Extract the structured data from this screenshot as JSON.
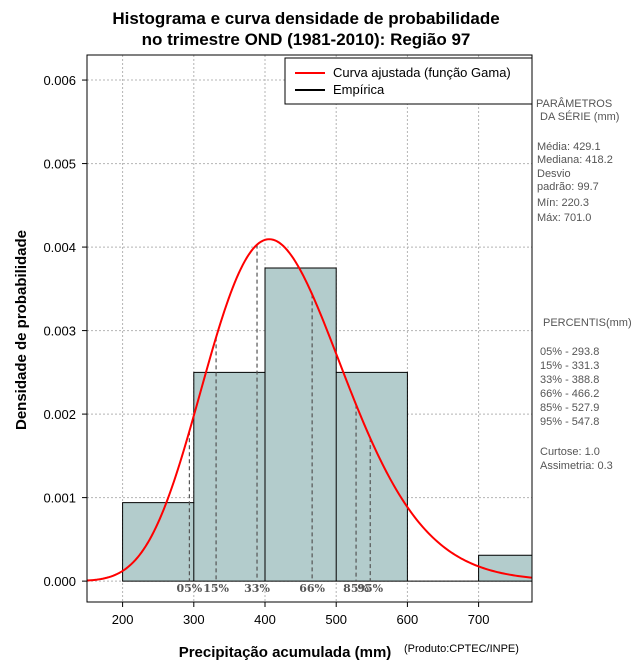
{
  "chart_data": {
    "type": "bar",
    "title_lines": [
      "Histograma e curva densidade de probabilidade",
      "no trimestre OND (1981-2010): Região 97"
    ],
    "xlabel": "Precipitação acumulada (mm)",
    "ylabel": "Densidade de probabilidade",
    "product_note": "(Produto:CPTEC/INPE)",
    "xlim": [
      150,
      775
    ],
    "ylim": [
      -0.00025,
      0.0063
    ],
    "x_ticks": [
      200,
      300,
      400,
      500,
      600,
      700
    ],
    "y_ticks": [
      0.0,
      0.001,
      0.002,
      0.003,
      0.004,
      0.005,
      0.006
    ],
    "y_tick_labels": [
      "0.000",
      "0.001",
      "0.002",
      "0.003",
      "0.004",
      "0.005",
      "0.006"
    ],
    "grid": true,
    "bins": [
      {
        "start": 200,
        "end": 300,
        "density": 0.00094
      },
      {
        "start": 300,
        "end": 400,
        "density": 0.0025
      },
      {
        "start": 400,
        "end": 500,
        "density": 0.00375
      },
      {
        "start": 500,
        "end": 600,
        "density": 0.0025
      },
      {
        "start": 600,
        "end": 700,
        "density": 0.0
      },
      {
        "start": 700,
        "end": 775,
        "density": 0.00031
      }
    ],
    "fitted_curve": {
      "distribution": "gamma",
      "mean": 429.1,
      "sd": 99.7
    },
    "percentiles": [
      {
        "label": "05%",
        "value": 293.8
      },
      {
        "label": "15%",
        "value": 331.3
      },
      {
        "label": "33%",
        "value": 388.8
      },
      {
        "label": "66%",
        "value": 466.2
      },
      {
        "label": "85%",
        "value": 527.9
      },
      {
        "label": "95%",
        "value": 547.8
      }
    ],
    "legend": {
      "position": "top-right",
      "entries": [
        {
          "label": "Curva ajustada (função Gama)",
          "color": "#ff0000"
        },
        {
          "label": "Empírica",
          "color": "#000000"
        }
      ]
    },
    "colors": {
      "bar_fill": "#b3cccc",
      "curve": "#ff0000",
      "grid": "#b4b4b4",
      "percentile_line": "#555555"
    }
  },
  "side_panel": {
    "params_title_1": "PARÂMETROS",
    "params_title_2": "DA SÉRIE (mm)",
    "media": "Média:  429.1",
    "mediana": "Mediana:  418.2",
    "desvio_1": "Desvio",
    "desvio_2": "padrão:  99.7",
    "min": "Mín:  220.3",
    "max": "Máx:  701.0",
    "percentis_title": "PERCENTIS(mm)",
    "percentis": [
      "05% -  293.8",
      "15% -  331.3",
      "33% -  388.8",
      "66% -  466.2",
      "85% -  527.9",
      "95% -  547.8"
    ],
    "curtose": "Curtose:  1.0",
    "assimetria": "Assimetria:  0.3"
  }
}
